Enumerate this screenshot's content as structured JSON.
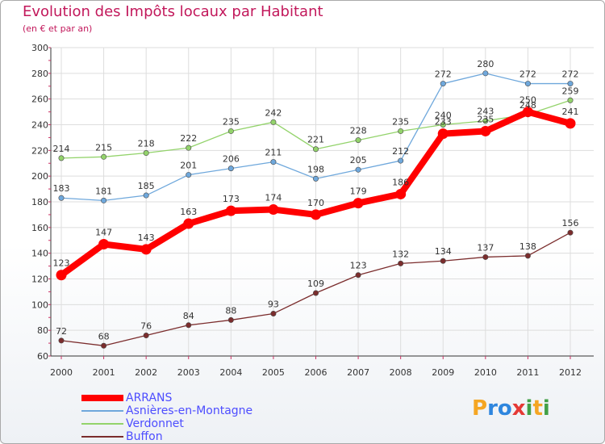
{
  "header": {
    "title": "Evolution des Impôts locaux par Habitant",
    "subtitle": "(en € et par an)"
  },
  "logo": {
    "text": "Proxiti",
    "letters": [
      {
        "ch": "P",
        "color": "#f5a623"
      },
      {
        "ch": "r",
        "color": "#2e86de"
      },
      {
        "ch": "o",
        "color": "#2e86de"
      },
      {
        "ch": "x",
        "color": "#e53935"
      },
      {
        "ch": "i",
        "color": "#43a047"
      },
      {
        "ch": "t",
        "color": "#f5a623"
      },
      {
        "ch": "i",
        "color": "#43a047"
      }
    ]
  },
  "colors": {
    "title": "#c2185b",
    "grid": "#dddddd",
    "axis_tick_marks": "#cc3366",
    "axis_text": "#333333",
    "legend_text": "#4d4dff"
  },
  "chart_data": {
    "type": "line",
    "title": "Evolution des Impôts locaux par Habitant",
    "subtitle": "(en € et par an)",
    "x": [
      "2000",
      "2001",
      "2002",
      "2003",
      "2004",
      "2005",
      "2006",
      "2007",
      "2008",
      "2009",
      "2010",
      "2011",
      "2012"
    ],
    "ylim": [
      60,
      300
    ],
    "yticks": [
      60,
      80,
      100,
      120,
      140,
      160,
      180,
      200,
      220,
      240,
      260,
      280,
      300
    ],
    "grid": true,
    "legend_position": "bottom-left",
    "series": [
      {
        "name": "ARRANS",
        "color": "#ff0000",
        "values": [
          123,
          147,
          143,
          163,
          173,
          174,
          170,
          179,
          186,
          233,
          235,
          250,
          241
        ],
        "labels": [
          "123",
          "147",
          "143",
          "163",
          "173",
          "174",
          "170",
          "179",
          "186",
          "233",
          "235",
          "250",
          "241"
        ]
      },
      {
        "name": "Asnières-en-Montagne",
        "color": "#6fa8dc",
        "values": [
          183,
          181,
          185,
          201,
          206,
          211,
          198,
          205,
          212,
          272,
          280,
          272,
          272
        ],
        "labels": [
          "183",
          "181",
          "185",
          "201",
          "206",
          "211",
          "198",
          "205",
          "212",
          "272",
          "280",
          "272",
          "272"
        ]
      },
      {
        "name": "Verdonnet",
        "color": "#93d36b",
        "values": [
          214,
          215,
          218,
          222,
          235,
          242,
          221,
          228,
          235,
          240,
          243,
          248,
          259
        ],
        "labels": [
          "214",
          "215",
          "218",
          "222",
          "235",
          "242",
          "221",
          "228",
          "235",
          "240",
          "243",
          "248",
          "259"
        ]
      },
      {
        "name": "Buffon",
        "color": "#7b2d2d",
        "values": [
          72,
          68,
          76,
          84,
          88,
          93,
          109,
          123,
          132,
          134,
          137,
          138,
          156
        ],
        "labels": [
          "72",
          "68",
          "76",
          "84",
          "88",
          "93",
          "109",
          "123",
          "132",
          "134",
          "137",
          "138",
          "156"
        ]
      }
    ]
  }
}
